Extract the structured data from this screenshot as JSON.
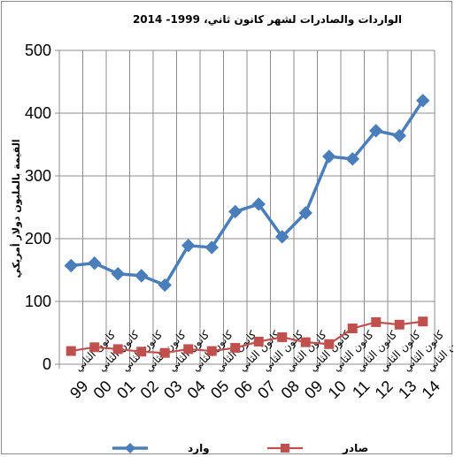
{
  "chart_data": {
    "type": "line",
    "title": "الواردات والصادرات لشهر كانون ثاني،  1999- 2014",
    "ylabel": "القيمة بالمليون دولار أمريكي",
    "ylim": [
      0,
      500
    ],
    "yticks": [
      0,
      100,
      200,
      300,
      400,
      500
    ],
    "grid": true,
    "legend": "bottom",
    "categories": [
      {
        "month": "كانون الثاني",
        "year": "99"
      },
      {
        "month": "كانون الثاني",
        "year": "00"
      },
      {
        "month": "كانون الثاني",
        "year": "01"
      },
      {
        "month": "كانون الثاني",
        "year": "02"
      },
      {
        "month": "كانون الثاني",
        "year": "03"
      },
      {
        "month": "كانون الثاني",
        "year": "04"
      },
      {
        "month": "كانون الثاني",
        "year": "05"
      },
      {
        "month": "كانون الثاني",
        "year": "06"
      },
      {
        "month": "كانون الثاني",
        "year": "07"
      },
      {
        "month": "كانون الثاني",
        "year": "08"
      },
      {
        "month": "كانون الثاني",
        "year": "09"
      },
      {
        "month": "كانون الثاني",
        "year": "10"
      },
      {
        "month": "كانون الثاني",
        "year": "11"
      },
      {
        "month": "كانون الثاني",
        "year": "12"
      },
      {
        "month": "كانون الثاني",
        "year": "13"
      },
      {
        "month": "كانون الثاني",
        "year": "14"
      }
    ],
    "series": [
      {
        "name": "وارد",
        "color": "#4a7ebb",
        "marker": "diamond",
        "values": [
          157,
          161,
          144,
          141,
          126,
          189,
          186,
          243,
          255,
          203,
          241,
          331,
          327,
          372,
          364,
          420
        ]
      },
      {
        "name": "صادر",
        "color": "#c0504d",
        "marker": "square",
        "values": [
          21,
          27,
          24,
          20,
          18,
          24,
          21,
          26,
          36,
          43,
          35,
          32,
          57,
          67,
          63,
          68
        ]
      }
    ]
  }
}
